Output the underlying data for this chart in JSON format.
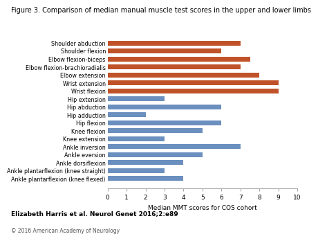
{
  "title": "Figure 3. Comparison of median manual muscle test scores in the upper and lower limbs",
  "xlabel": "Median MMT scores for COS cohort",
  "categories": [
    "Ankle plantarflexion (knee flexed)",
    "Ankle plantarflexion (knee straight)",
    "Ankle dorsiflexion",
    "Ankle eversion",
    "Ankle inversion",
    "Knee extension",
    "Knee flexion",
    "Hip flexion",
    "Hip adduction",
    "Hip abduction",
    "Hip extension",
    "Wrist flexion",
    "Wrist extension",
    "Elbow extension",
    "Elbow flexion-brachioradialis",
    "Elbow flexion-biceps",
    "Shoulder flexion",
    "Shoulder abduction"
  ],
  "values": [
    4,
    3,
    4,
    5,
    7,
    3,
    5,
    6,
    2,
    6,
    3,
    9,
    9,
    8,
    7,
    7.5,
    6,
    7
  ],
  "colors": [
    "#6b8fbe",
    "#6b8fbe",
    "#6b8fbe",
    "#6b8fbe",
    "#6b8fbe",
    "#6b8fbe",
    "#6b8fbe",
    "#6b8fbe",
    "#6b8fbe",
    "#6b8fbe",
    "#6b8fbe",
    "#c0522a",
    "#c0522a",
    "#c0522a",
    "#c0522a",
    "#c0522a",
    "#c0522a",
    "#c0522a"
  ],
  "xlim": [
    0,
    10
  ],
  "xticks": [
    0,
    1,
    2,
    3,
    4,
    5,
    6,
    7,
    8,
    9,
    10
  ],
  "citation": "Elizabeth Harris et al. Neurol Genet 2016;2:e89",
  "copyright": "© 2016 American Academy of Neurology",
  "bg_color": "#ffffff",
  "title_fontsize": 7.0,
  "label_fontsize": 5.8,
  "tick_fontsize": 6.5,
  "xlabel_fontsize": 6.5,
  "citation_fontsize": 6.5,
  "copyright_fontsize": 5.5
}
